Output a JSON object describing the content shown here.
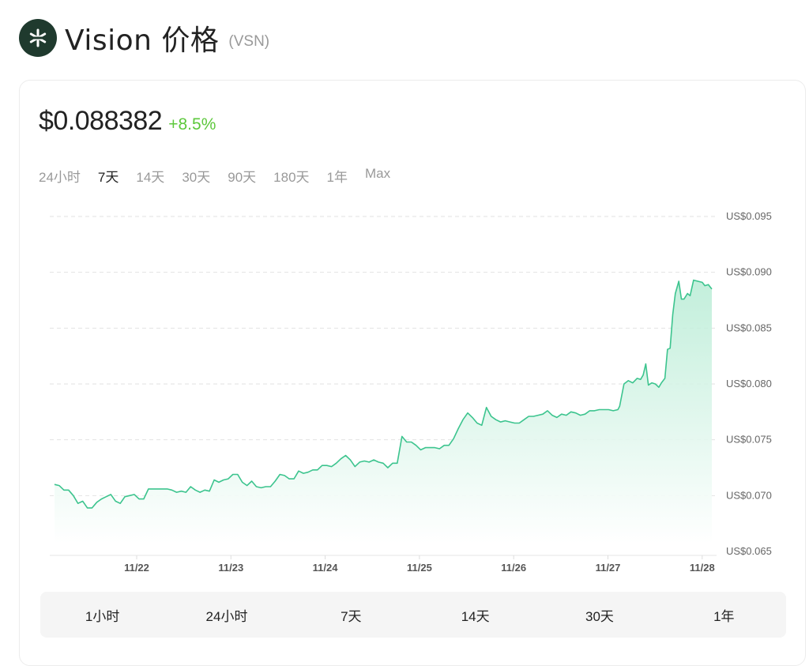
{
  "header": {
    "title": "Vision 价格",
    "ticker": "(VSN)",
    "logo_icon": "asterisk-logo-icon"
  },
  "price": {
    "value": "$0.088382",
    "change": "+8.5%",
    "change_color": "#5dc83c"
  },
  "ranges": [
    {
      "label": "24小时",
      "active": false
    },
    {
      "label": "7天",
      "active": true
    },
    {
      "label": "14天",
      "active": false
    },
    {
      "label": "30天",
      "active": false
    },
    {
      "label": "90天",
      "active": false
    },
    {
      "label": "180天",
      "active": false
    },
    {
      "label": "1年",
      "active": false
    },
    {
      "label": "Max",
      "active": false
    }
  ],
  "bottom_tabs": [
    {
      "label": "1小时"
    },
    {
      "label": "24小时"
    },
    {
      "label": "7天"
    },
    {
      "label": "14天"
    },
    {
      "label": "30天"
    },
    {
      "label": "1年"
    }
  ],
  "colors": {
    "line": "#3cc48e",
    "fill_top": "#c9f0df",
    "grid": "#e2e2e2"
  },
  "chart_data": {
    "type": "area",
    "title": "Vision 价格 (VSN) - 7天",
    "xlabel": "",
    "ylabel": "",
    "ylim": [
      0.065,
      0.095
    ],
    "y_ticks": [
      "US$0.095",
      "US$0.090",
      "US$0.085",
      "US$0.080",
      "US$0.075",
      "US$0.070",
      "US$0.065"
    ],
    "y_tick_values": [
      0.095,
      0.09,
      0.085,
      0.08,
      0.075,
      0.07,
      0.065
    ],
    "x_ticks": [
      "11/22",
      "11/23",
      "11/24",
      "11/25",
      "11/26",
      "11/27",
      "11/28"
    ],
    "grid": true,
    "legend": "none",
    "series": [
      {
        "name": "VSN price (USD)",
        "x": [
          0.0,
          0.05,
          0.1,
          0.15,
          0.2,
          0.25,
          0.3,
          0.35,
          0.4,
          0.45,
          0.5,
          0.55,
          0.6,
          0.65,
          0.7,
          0.75,
          0.8,
          0.85,
          0.9,
          0.95,
          1.0,
          1.05,
          1.1,
          1.15,
          1.2,
          1.25,
          1.3,
          1.35,
          1.4,
          1.45,
          1.5,
          1.55,
          1.6,
          1.65,
          1.7,
          1.75,
          1.8,
          1.85,
          1.9,
          1.95,
          2.0,
          2.05,
          2.1,
          2.15,
          2.2,
          2.25,
          2.3,
          2.35,
          2.4,
          2.45,
          2.5,
          2.55,
          2.6,
          2.65,
          2.7,
          2.75,
          2.8,
          2.85,
          2.9,
          2.95,
          3.0,
          3.05,
          3.1,
          3.15,
          3.2,
          3.25,
          3.3,
          3.35,
          3.4,
          3.45,
          3.5,
          3.55,
          3.6,
          3.65,
          3.7,
          3.75,
          3.8,
          3.85,
          3.9,
          3.95,
          4.0,
          4.05,
          4.1,
          4.15,
          4.2,
          4.25,
          4.3,
          4.35,
          4.4,
          4.45,
          4.5,
          4.55,
          4.6,
          4.65,
          4.7,
          4.75,
          4.8,
          4.85,
          4.9,
          4.95,
          5.0,
          5.05,
          5.1,
          5.15,
          5.2,
          5.25,
          5.3,
          5.35,
          5.4,
          5.45,
          5.5,
          5.55,
          5.6,
          5.65,
          5.7,
          5.75,
          5.8,
          5.85,
          5.9,
          5.95,
          6.0,
          6.05,
          6.1,
          6.15,
          6.2,
          6.25,
          6.3,
          6.35,
          6.4,
          6.45,
          6.5,
          6.55,
          6.6,
          6.65,
          6.7,
          6.75,
          6.8,
          6.85,
          6.9,
          6.95,
          7.0
        ],
        "values": [
          0.071,
          0.0709,
          0.0705,
          0.0705,
          0.07,
          0.0693,
          0.0695,
          0.0689,
          0.0689,
          0.0694,
          0.0697,
          0.0699,
          0.0701,
          0.0695,
          0.0693,
          0.0699,
          0.07,
          0.0701,
          0.0697,
          0.0697,
          0.0706,
          0.0706,
          0.0706,
          0.0706,
          0.0706,
          0.0705,
          0.0703,
          0.0704,
          0.0703,
          0.0708,
          0.0705,
          0.0703,
          0.0705,
          0.0704,
          0.0714,
          0.0712,
          0.0714,
          0.0715,
          0.0719,
          0.0719,
          0.0712,
          0.0709,
          0.0713,
          0.0708,
          0.0707,
          0.0708,
          0.0708,
          0.0713,
          0.0719,
          0.0718,
          0.0715,
          0.0715,
          0.0722,
          0.072,
          0.0721,
          0.0723,
          0.0723,
          0.0727,
          0.0727,
          0.0726,
          0.0729,
          0.0733,
          0.0736,
          0.0732,
          0.0726,
          0.073,
          0.0731,
          0.073,
          0.0732,
          0.073,
          0.0729,
          0.0725,
          0.0729,
          0.0729,
          0.0753,
          0.0748,
          0.0748,
          0.0745,
          0.0741,
          0.0743,
          0.0743,
          0.0743,
          0.0742,
          0.0745,
          0.0745,
          0.0751,
          0.076,
          0.0768,
          0.0774,
          0.077,
          0.0765,
          0.0763,
          0.0779,
          0.0771,
          0.0768,
          0.0766,
          0.0767,
          0.0766,
          0.0765,
          0.0765,
          0.0768,
          0.0771,
          0.0771,
          0.0772,
          0.0773,
          0.0776,
          0.0772,
          0.077,
          0.0773,
          0.0772,
          0.0775,
          0.0774,
          0.0772,
          0.0773,
          0.0776,
          0.0776,
          0.0777,
          0.0777,
          0.0777,
          0.0776,
          0.0777,
          0.078,
          0.0782,
          0.0783,
          0.0785,
          0.0786,
          0.0782,
          0.0779,
          0.0779,
          0.0775,
          0.0777,
          0.0775,
          0.0787,
          0.0801,
          0.0803,
          0.08,
          0.0802,
          0.0807,
          0.0806,
          0.0803,
          0.0883
        ]
      }
    ]
  }
}
